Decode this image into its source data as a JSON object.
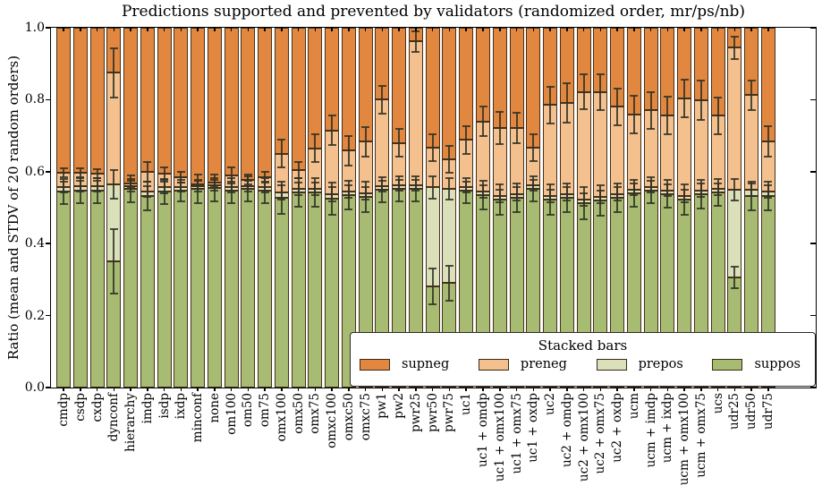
{
  "title": "Predictions supported and prevented by validators (randomized order, mr/ps/nb)",
  "chart_data": {
    "type": "bar",
    "stacked": true,
    "title": "Predictions supported and prevented by validators (randomized order, mr/ps/nb)",
    "ylabel": "Ratio (mean and STDV of 20 random orders)",
    "ylim": [
      0.0,
      1.0
    ],
    "ytick_labels": [
      "0.0",
      "0.2",
      "0.4",
      "0.6",
      "0.8",
      "1.0"
    ],
    "yticks": [
      0.0,
      0.2,
      0.4,
      0.6,
      0.8,
      1.0
    ],
    "grid": false,
    "stack_order_bottom_to_top": [
      "suppos",
      "prepos",
      "preneg",
      "supneg"
    ],
    "colors": {
      "supneg": "#e2873f",
      "preneg": "#f3c08e",
      "prepos": "#d9e0ba",
      "suppos": "#a8bb72"
    },
    "legend": {
      "title": "Stacked bars",
      "position": "lower right",
      "entries": [
        "supneg",
        "preneg",
        "prepos",
        "suppos"
      ]
    },
    "categories": [
      "cmdp",
      "csdp",
      "cxdp",
      "dynconf",
      "hierarchy",
      "imdp",
      "isdp",
      "ixdp",
      "minconf",
      "none",
      "om100",
      "om50",
      "om75",
      "omx100",
      "omx50",
      "omx75",
      "omxc100",
      "omxc50",
      "omxc75",
      "pw1",
      "pw2",
      "pwr25",
      "pwr50",
      "pwr75",
      "uc1",
      "uc1 + omdp",
      "uc1 + omx100",
      "uc1 + omx75",
      "uc1 + oxdp",
      "uc2",
      "uc2 + omdp",
      "uc2 + omx100",
      "uc2 + omx75",
      "uc2 + oxdp",
      "ucm",
      "ucm + imdp",
      "ucm + ixdp",
      "ucm + omx100",
      "ucm + omx75",
      "ucs",
      "udr25",
      "udr50",
      "udr75"
    ],
    "cumulative_mean_tops": {
      "suppos_top": [
        0.545,
        0.548,
        0.548,
        0.35,
        0.552,
        0.532,
        0.545,
        0.548,
        0.552,
        0.555,
        0.548,
        0.552,
        0.548,
        0.528,
        0.542,
        0.542,
        0.525,
        0.535,
        0.53,
        0.55,
        0.552,
        0.552,
        0.282,
        0.29,
        0.548,
        0.535,
        0.522,
        0.528,
        0.552,
        0.522,
        0.528,
        0.512,
        0.52,
        0.528,
        0.54,
        0.548,
        0.538,
        0.522,
        0.538,
        0.542,
        0.306,
        0.532,
        0.532
      ],
      "prepos_top": [
        0.558,
        0.56,
        0.56,
        0.565,
        0.56,
        0.545,
        0.556,
        0.558,
        0.56,
        0.562,
        0.558,
        0.56,
        0.557,
        0.542,
        0.552,
        0.552,
        0.538,
        0.545,
        0.54,
        0.56,
        0.562,
        0.562,
        0.556,
        0.552,
        0.558,
        0.545,
        0.532,
        0.538,
        0.562,
        0.532,
        0.538,
        0.522,
        0.53,
        0.538,
        0.55,
        0.558,
        0.548,
        0.532,
        0.548,
        0.552,
        0.55,
        0.55,
        0.545
      ],
      "preneg_top": [
        0.597,
        0.597,
        0.595,
        0.875,
        0.568,
        0.6,
        0.595,
        0.585,
        0.565,
        0.57,
        0.59,
        0.578,
        0.585,
        0.65,
        0.605,
        0.665,
        0.715,
        0.658,
        0.683,
        0.8,
        0.68,
        0.962,
        0.667,
        0.634,
        0.688,
        0.74,
        0.721,
        0.721,
        0.667,
        0.785,
        0.791,
        0.822,
        0.821,
        0.78,
        0.758,
        0.77,
        0.756,
        0.803,
        0.798,
        0.755,
        0.945,
        0.813,
        0.684
      ],
      "supneg_top": 1.0
    },
    "stdv": {
      "at_suppos_top": [
        0.035,
        0.035,
        0.035,
        0.09,
        0.038,
        0.04,
        0.035,
        0.03,
        0.04,
        0.038,
        0.035,
        0.035,
        0.035,
        0.045,
        0.04,
        0.04,
        0.045,
        0.04,
        0.042,
        0.035,
        0.035,
        0.035,
        0.05,
        0.048,
        0.035,
        0.04,
        0.042,
        0.04,
        0.035,
        0.042,
        0.04,
        0.045,
        0.042,
        0.04,
        0.038,
        0.036,
        0.038,
        0.042,
        0.04,
        0.038,
        0.03,
        0.04,
        0.04
      ],
      "at_prepos_top": [
        0.015,
        0.015,
        0.015,
        0.04,
        0.015,
        0.015,
        0.015,
        0.012,
        0.015,
        0.014,
        0.015,
        0.014,
        0.014,
        0.02,
        0.018,
        0.018,
        0.02,
        0.018,
        0.018,
        0.015,
        0.015,
        0.015,
        0.03,
        0.03,
        0.015,
        0.018,
        0.018,
        0.018,
        0.015,
        0.018,
        0.018,
        0.018,
        0.018,
        0.018,
        0.016,
        0.016,
        0.016,
        0.018,
        0.018,
        0.016,
        0.03,
        0.018,
        0.018
      ],
      "at_preneg_top": [
        0.012,
        0.012,
        0.012,
        0.068,
        0.012,
        0.028,
        0.018,
        0.015,
        0.012,
        0.012,
        0.022,
        0.014,
        0.015,
        0.038,
        0.022,
        0.038,
        0.042,
        0.04,
        0.042,
        0.038,
        0.038,
        0.028,
        0.038,
        0.038,
        0.038,
        0.04,
        0.045,
        0.042,
        0.038,
        0.05,
        0.055,
        0.048,
        0.05,
        0.05,
        0.052,
        0.05,
        0.053,
        0.052,
        0.054,
        0.05,
        0.031,
        0.041,
        0.042
      ]
    }
  }
}
